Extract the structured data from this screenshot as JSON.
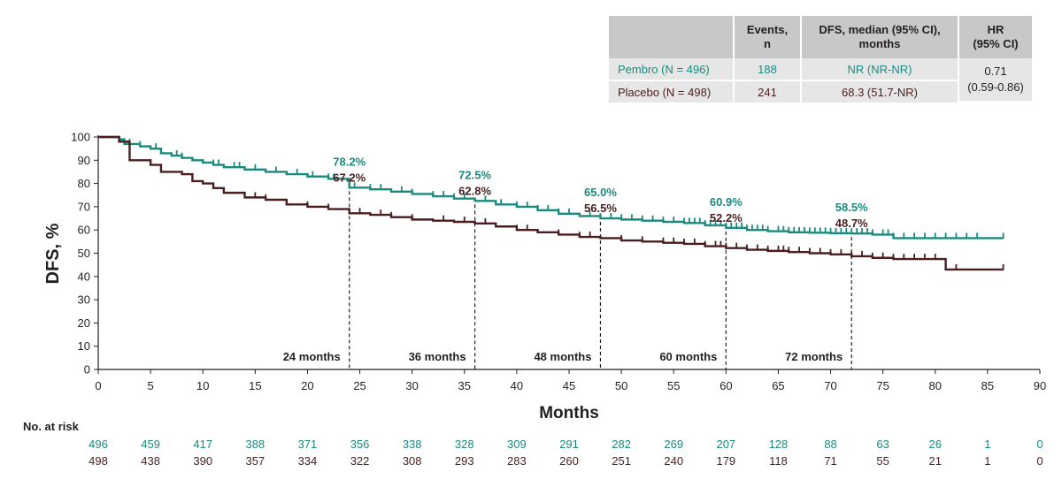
{
  "summary_table": {
    "headers": [
      "",
      "Events,\nn",
      "DFS, median (95% CI),\nmonths",
      "HR\n(95% CI)"
    ],
    "rows": [
      {
        "group": "Pembro (N = 496)",
        "events": "188",
        "median": "NR (NR-NR)"
      },
      {
        "group": "Placebo (N = 498)",
        "events": "241",
        "median": "68.3 (51.7-NR)"
      }
    ],
    "hr_line1": "0.71",
    "hr_line2": "(0.59-0.86)"
  },
  "risk_table": {
    "title": "No. at risk",
    "pembro": [
      "496",
      "459",
      "417",
      "388",
      "371",
      "356",
      "338",
      "328",
      "309",
      "291",
      "282",
      "269",
      "207",
      "128",
      "88",
      "63",
      "26",
      "1",
      "0"
    ],
    "placebo": [
      "498",
      "438",
      "390",
      "357",
      "334",
      "322",
      "308",
      "293",
      "283",
      "260",
      "251",
      "240",
      "179",
      "118",
      "71",
      "55",
      "21",
      "1",
      "0"
    ]
  },
  "colors": {
    "pembro": "#1a8a7f",
    "placebo": "#4a1e1f",
    "axis": "#231f20"
  },
  "chart_data": {
    "type": "line",
    "xlabel": "Months",
    "ylabel": "DFS, %",
    "xlim": [
      0,
      90
    ],
    "ylim": [
      0,
      100
    ],
    "xticks": [
      "0",
      "5",
      "10",
      "15",
      "20",
      "25",
      "30",
      "35",
      "40",
      "45",
      "50",
      "55",
      "60",
      "65",
      "70",
      "75",
      "80",
      "85",
      "90"
    ],
    "yticks": [
      "0",
      "10",
      "20",
      "30",
      "40",
      "50",
      "60",
      "70",
      "80",
      "90",
      "100"
    ],
    "grid": false,
    "series": [
      {
        "name": "Pembro",
        "points": [
          [
            0,
            100
          ],
          [
            2,
            99
          ],
          [
            2.5,
            97
          ],
          [
            4,
            96
          ],
          [
            5,
            95
          ],
          [
            6,
            93
          ],
          [
            7,
            92
          ],
          [
            8,
            91
          ],
          [
            9,
            90
          ],
          [
            10,
            89
          ],
          [
            11,
            88
          ],
          [
            12,
            87
          ],
          [
            14,
            86
          ],
          [
            16,
            85
          ],
          [
            18,
            84
          ],
          [
            20,
            83
          ],
          [
            22,
            82
          ],
          [
            24,
            78.2
          ],
          [
            26,
            77.5
          ],
          [
            28,
            76.5
          ],
          [
            30,
            75.5
          ],
          [
            32,
            74.5
          ],
          [
            34,
            73.5
          ],
          [
            36,
            72.5
          ],
          [
            38,
            71
          ],
          [
            40,
            70
          ],
          [
            42,
            68.5
          ],
          [
            44,
            67
          ],
          [
            46,
            66
          ],
          [
            48,
            65
          ],
          [
            50,
            64.5
          ],
          [
            52,
            64
          ],
          [
            54,
            63.5
          ],
          [
            56,
            63
          ],
          [
            58,
            62
          ],
          [
            60,
            60.9
          ],
          [
            62,
            60
          ],
          [
            64,
            59.5
          ],
          [
            66,
            59
          ],
          [
            68,
            58.8
          ],
          [
            70,
            58.6
          ],
          [
            72,
            58.5
          ],
          [
            74,
            58
          ],
          [
            76,
            56.5
          ],
          [
            80,
            56.5
          ],
          [
            86.5,
            56.5
          ]
        ],
        "censor_x": [
          3,
          4,
          5.5,
          6,
          7.5,
          8,
          11,
          11.5,
          13,
          13.5,
          15,
          17,
          19,
          20.5,
          22,
          22.5,
          24.5,
          26,
          27,
          29,
          30,
          32,
          33,
          34,
          35,
          37,
          38.5,
          40,
          41,
          42,
          43,
          44,
          45,
          47,
          48,
          49,
          50,
          51,
          52,
          53,
          54,
          55,
          56,
          56.5,
          57,
          57.5,
          58,
          58.5,
          59,
          59.5,
          60,
          60.5,
          61,
          61.5,
          62,
          62.5,
          63,
          63.5,
          64,
          65,
          65.5,
          66,
          66.5,
          67,
          67.5,
          68,
          68.5,
          69,
          69.5,
          70,
          70.5,
          71,
          71.5,
          72,
          72.5,
          73,
          73.5,
          74,
          75,
          75.5,
          76,
          77,
          78,
          79,
          80,
          81,
          82,
          83,
          84,
          86.5
        ]
      },
      {
        "name": "Placebo",
        "points": [
          [
            0,
            100
          ],
          [
            2,
            98
          ],
          [
            3,
            90
          ],
          [
            5,
            88
          ],
          [
            6,
            85
          ],
          [
            8,
            84
          ],
          [
            9,
            81
          ],
          [
            10,
            80
          ],
          [
            11,
            78
          ],
          [
            12,
            76
          ],
          [
            14,
            74
          ],
          [
            16,
            73
          ],
          [
            18,
            71
          ],
          [
            20,
            70
          ],
          [
            22,
            69
          ],
          [
            24,
            67.2
          ],
          [
            26,
            66.5
          ],
          [
            28,
            65.5
          ],
          [
            30,
            64.5
          ],
          [
            32,
            64
          ],
          [
            34,
            63.5
          ],
          [
            36,
            62.8
          ],
          [
            38,
            61.5
          ],
          [
            40,
            60
          ],
          [
            42,
            59
          ],
          [
            44,
            58
          ],
          [
            46,
            57
          ],
          [
            48,
            56.5
          ],
          [
            50,
            55.5
          ],
          [
            52,
            55
          ],
          [
            54,
            54.5
          ],
          [
            56,
            54
          ],
          [
            58,
            53
          ],
          [
            60,
            52.2
          ],
          [
            62,
            51.5
          ],
          [
            64,
            51
          ],
          [
            66,
            50.5
          ],
          [
            68,
            50
          ],
          [
            70,
            49.5
          ],
          [
            72,
            48.7
          ],
          [
            74,
            48
          ],
          [
            76,
            47.5
          ],
          [
            78,
            47.5
          ],
          [
            80,
            47.5
          ],
          [
            81,
            43
          ],
          [
            86.5,
            43
          ]
        ],
        "censor_x": [
          2,
          11,
          15,
          16,
          20,
          22,
          25,
          27,
          28,
          30,
          33,
          35,
          37,
          40,
          41,
          44,
          46,
          47,
          50,
          52,
          54,
          55,
          56,
          57,
          58,
          59,
          59.5,
          60,
          61,
          62,
          63,
          64,
          65,
          65.5,
          66,
          67,
          68,
          69,
          70,
          71,
          72,
          73,
          74,
          75,
          76,
          77,
          78,
          79,
          80,
          81,
          82,
          86.5
        ]
      }
    ],
    "landmarks": [
      {
        "x": 24,
        "label": "24 months",
        "pembro": "78.2%",
        "placebo": "67.2%",
        "pembro_y": 78.2,
        "placebo_y": 67.2
      },
      {
        "x": 36,
        "label": "36 months",
        "pembro": "72.5%",
        "placebo": "62.8%",
        "pembro_y": 72.5,
        "placebo_y": 62.8
      },
      {
        "x": 48,
        "label": "48 months",
        "pembro": "65.0%",
        "placebo": "56.5%",
        "pembro_y": 65.0,
        "placebo_y": 56.5
      },
      {
        "x": 60,
        "label": "60 months",
        "pembro": "60.9%",
        "placebo": "52.2%",
        "pembro_y": 60.9,
        "placebo_y": 52.2
      },
      {
        "x": 72,
        "label": "72 months",
        "pembro": "58.5%",
        "placebo": "48.7%",
        "pembro_y": 58.5,
        "placebo_y": 48.7
      }
    ]
  }
}
